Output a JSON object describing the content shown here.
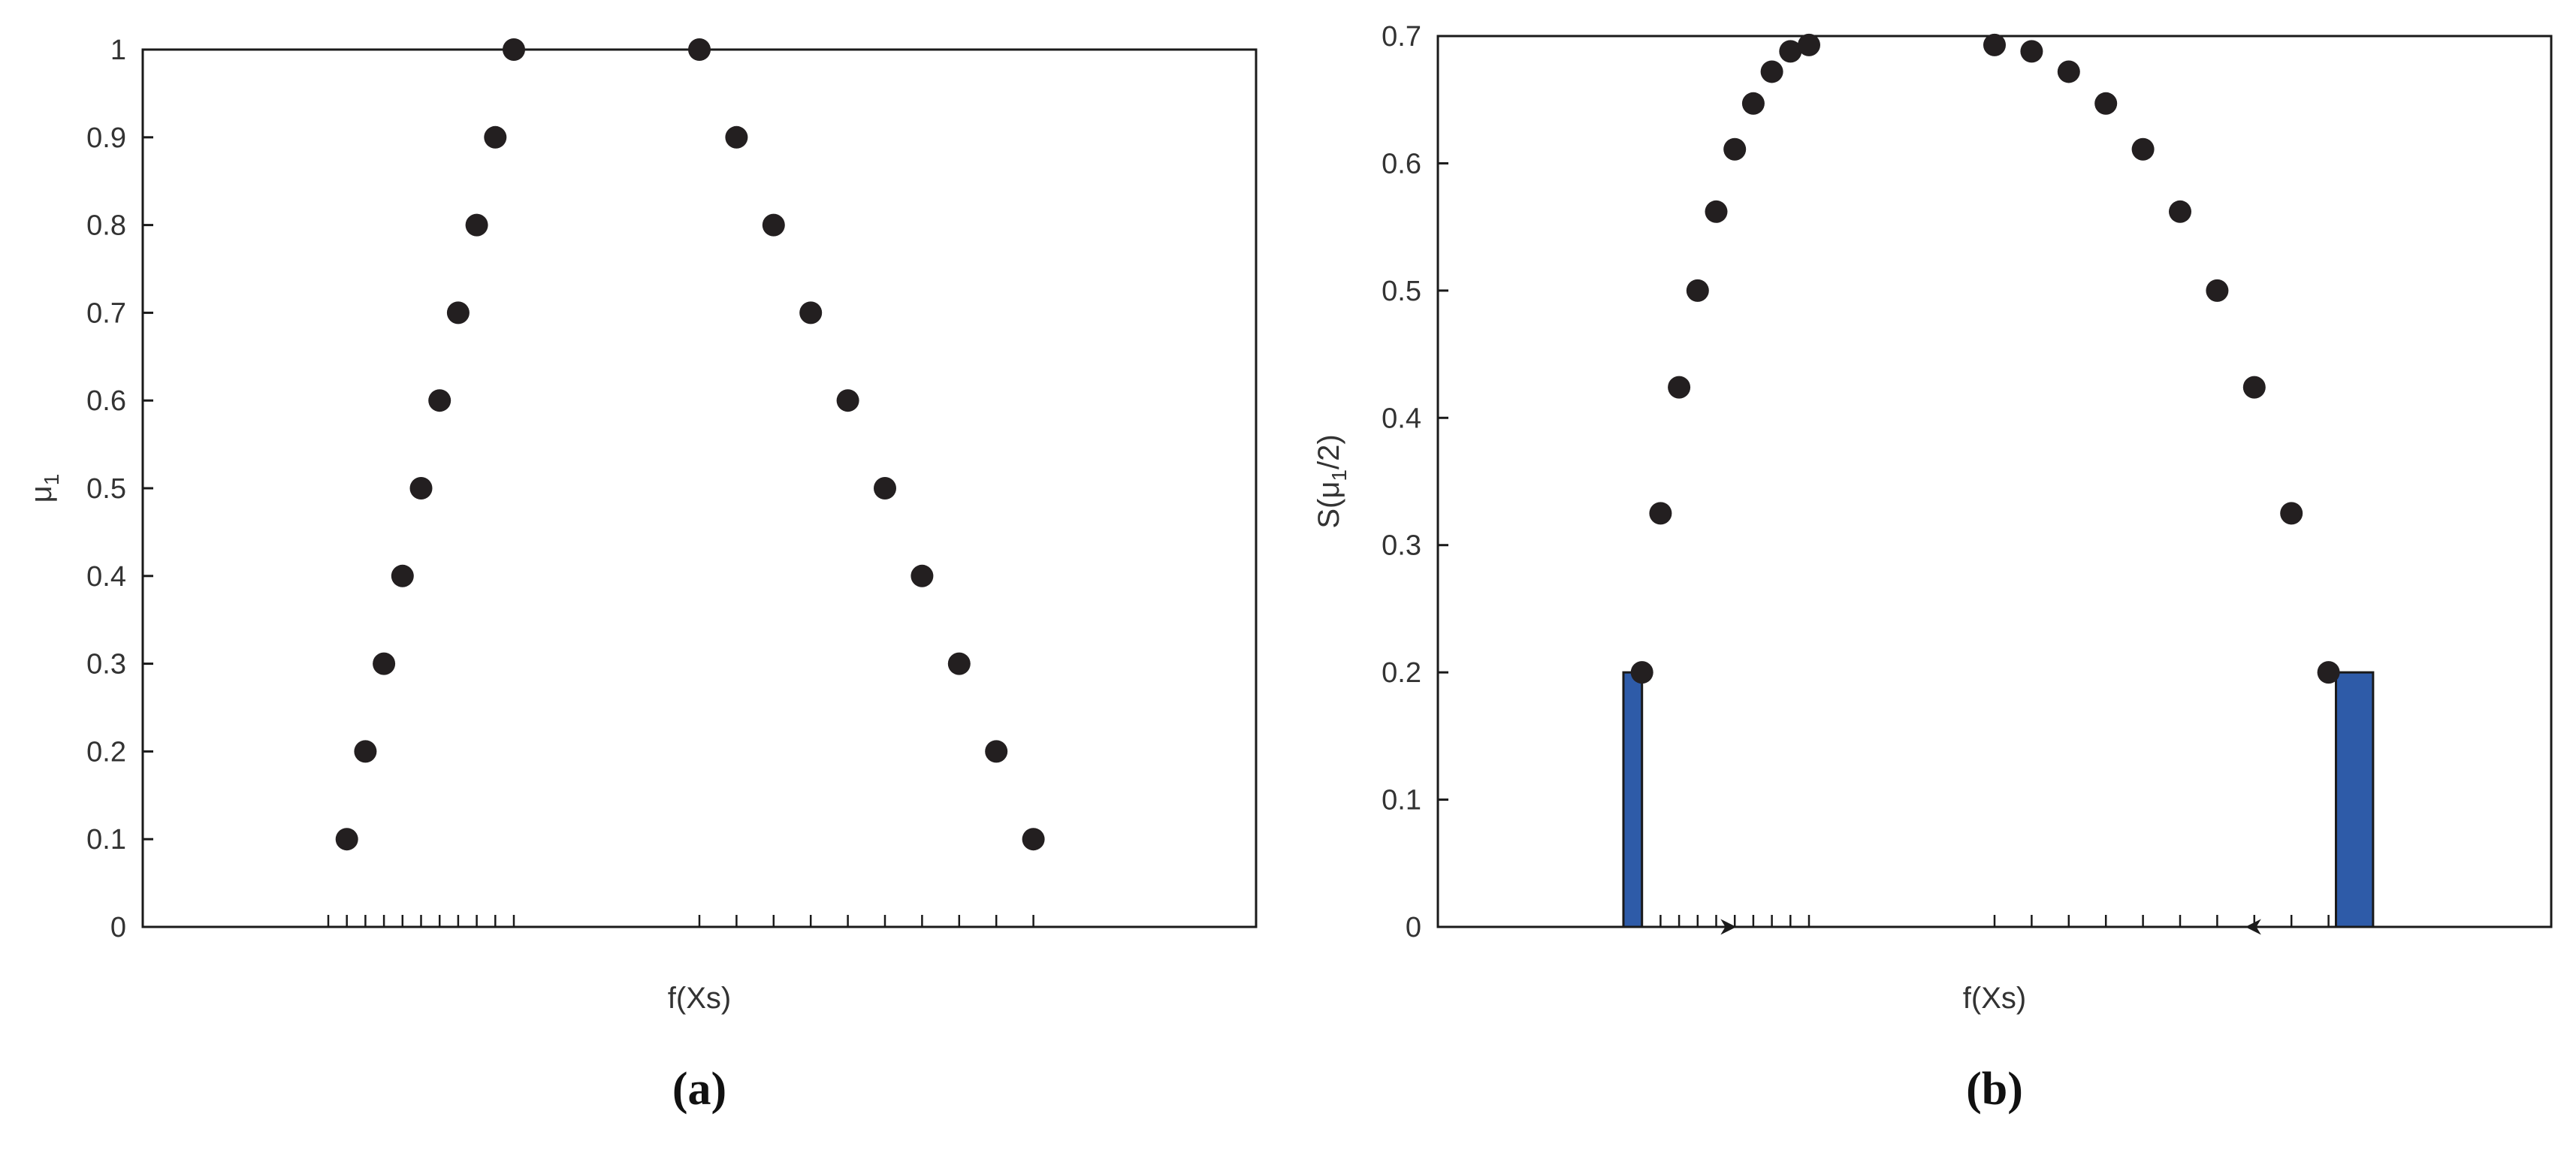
{
  "colors": {
    "marker": "#231f20",
    "bar": "#2e5ba8",
    "bar_edge": "#1a1a1a",
    "axis": "#1a1a1a",
    "text": "#333333"
  },
  "chart_data": [
    {
      "type": "scatter",
      "panel_label": "(a)",
      "xlabel": "f(Xs)",
      "ylabel_main": "μ",
      "ylabel_sub": "1",
      "xlim": [
        0,
        30
      ],
      "ylim": [
        0,
        1
      ],
      "yticks": [
        0,
        0.1,
        0.2,
        0.3,
        0.4,
        0.5,
        0.6,
        0.7,
        0.8,
        0.9,
        1
      ],
      "ytick_labels": [
        "0",
        "0.1",
        "0.2",
        "0.3",
        "0.4",
        "0.5",
        "0.6",
        "0.7",
        "0.8",
        "0.9",
        "1"
      ],
      "x_minor_ticks": [
        5,
        5.5,
        6,
        6.5,
        7,
        7.5,
        8,
        8.5,
        9,
        9.5,
        10,
        15,
        16,
        17,
        18,
        19,
        20,
        21,
        22,
        23,
        24
      ],
      "series": [
        {
          "x": [
            5.5,
            6,
            6.5,
            7,
            7.5,
            8,
            8.5,
            9,
            9.5,
            10,
            15,
            16,
            17,
            18,
            19,
            20,
            21,
            22,
            23,
            24
          ],
          "y": [
            0.1,
            0.2,
            0.3,
            0.4,
            0.5,
            0.6,
            0.7,
            0.8,
            0.9,
            1,
            1,
            0.9,
            0.8,
            0.7,
            0.6,
            0.5,
            0.4,
            0.3,
            0.2,
            0.1
          ]
        }
      ],
      "grid": false
    },
    {
      "type": "scatter",
      "panel_label": "(b)",
      "xlabel": "f(Xs)",
      "ylabel_pre": "S(",
      "ylabel_main": "μ",
      "ylabel_sub": "1",
      "ylabel_post": "/2)",
      "xlim": [
        0,
        30
      ],
      "ylim": [
        0,
        0.7
      ],
      "yticks": [
        0,
        0.1,
        0.2,
        0.3,
        0.4,
        0.5,
        0.6,
        0.7
      ],
      "ytick_labels": [
        "0",
        "0.1",
        "0.2",
        "0.3",
        "0.4",
        "0.5",
        "0.6",
        "0.7"
      ],
      "x_minor_ticks": [
        5.5,
        6,
        6.5,
        7,
        7.5,
        8,
        8.5,
        9,
        9.5,
        10,
        15,
        16,
        17,
        18,
        19,
        20,
        21,
        22,
        23,
        24
      ],
      "series": [
        {
          "x": [
            5.5,
            6,
            6.5,
            7,
            7.5,
            8,
            8.5,
            9,
            9.5,
            10,
            15,
            16,
            17,
            18,
            19,
            20,
            21,
            22,
            23,
            24
          ],
          "y": [
            0.2,
            0.325,
            0.424,
            0.5,
            0.562,
            0.611,
            0.647,
            0.672,
            0.688,
            0.693,
            0.693,
            0.688,
            0.672,
            0.647,
            0.611,
            0.562,
            0.5,
            0.424,
            0.325,
            0.2
          ]
        }
      ],
      "bars": [
        {
          "x0": 5,
          "x1": 5.5,
          "height": 0.2
        },
        {
          "x0": 24.2,
          "x1": 25.2,
          "height": 0.2
        }
      ],
      "arrows": [
        {
          "from": 6.5,
          "to": 8,
          "direction": "right"
        },
        {
          "from": 22.5,
          "to": 21.8,
          "direction": "left"
        }
      ],
      "grid": false
    }
  ]
}
